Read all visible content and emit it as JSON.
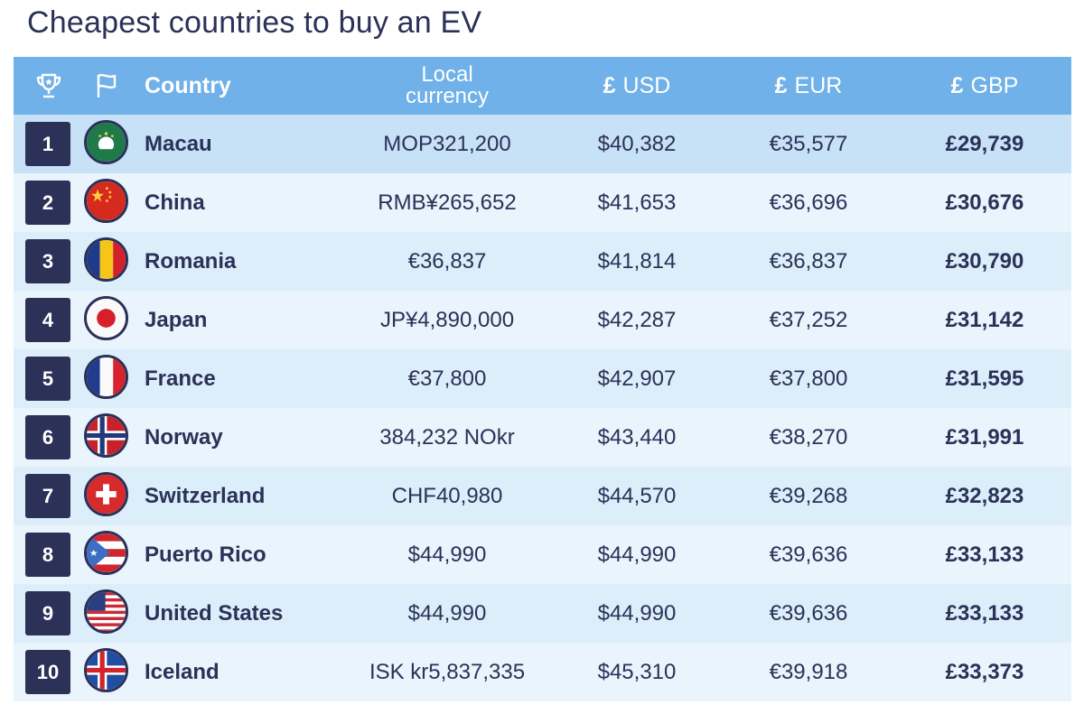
{
  "title": "Cheapest countries to buy an EV",
  "header": {
    "trophy_icon": "trophy-icon",
    "flag_icon": "flag-icon",
    "country": "Country",
    "local_line1": "Local",
    "local_line2": "currency",
    "currency_glyph": "£",
    "usd": "USD",
    "eur": "EUR",
    "gbp": "GBP"
  },
  "rows": [
    {
      "rank": "1",
      "country": "Macau",
      "flag": "macau-flag-icon",
      "local": "MOP321,200",
      "usd": "$40,382",
      "eur": "€35,577",
      "gbp": "£29,739"
    },
    {
      "rank": "2",
      "country": "China",
      "flag": "china-flag-icon",
      "local": "RMB¥265,652",
      "usd": "$41,653",
      "eur": "€36,696",
      "gbp": "£30,676"
    },
    {
      "rank": "3",
      "country": "Romania",
      "flag": "romania-flag-icon",
      "local": "€36,837",
      "usd": "$41,814",
      "eur": "€36,837",
      "gbp": "£30,790"
    },
    {
      "rank": "4",
      "country": "Japan",
      "flag": "japan-flag-icon",
      "local": "JP¥4,890,000",
      "usd": "$42,287",
      "eur": "€37,252",
      "gbp": "£31,142"
    },
    {
      "rank": "5",
      "country": "France",
      "flag": "france-flag-icon",
      "local": "€37,800",
      "usd": "$42,907",
      "eur": "€37,800",
      "gbp": "£31,595"
    },
    {
      "rank": "6",
      "country": "Norway",
      "flag": "norway-flag-icon",
      "local": "384,232 NOkr",
      "usd": "$43,440",
      "eur": "€38,270",
      "gbp": "£31,991"
    },
    {
      "rank": "7",
      "country": "Switzerland",
      "flag": "switzerland-flag-icon",
      "local": "CHF40,980",
      "usd": "$44,570",
      "eur": "€39,268",
      "gbp": "£32,823"
    },
    {
      "rank": "8",
      "country": "Puerto Rico",
      "flag": "puerto-rico-flag-icon",
      "local": "$44,990",
      "usd": "$44,990",
      "eur": "€39,636",
      "gbp": "£33,133"
    },
    {
      "rank": "9",
      "country": "United States",
      "flag": "usa-flag-icon",
      "local": "$44,990",
      "usd": "$44,990",
      "eur": "€39,636",
      "gbp": "£33,133"
    },
    {
      "rank": "10",
      "country": "Iceland",
      "flag": "iceland-flag-icon",
      "local": "ISK kr5,837,335",
      "usd": "$45,310",
      "eur": "€39,918",
      "gbp": "£33,373"
    }
  ],
  "colors": {
    "header_bg": "#6fb1e8",
    "navy": "#2b3157",
    "row_highlight": "#c7e1f6"
  }
}
